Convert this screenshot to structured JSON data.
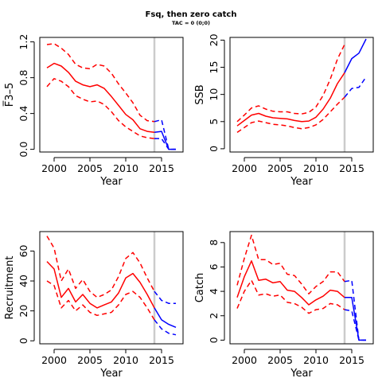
{
  "figure": {
    "title": "Fsq, then zero catch",
    "subtitle": "TAC = 0 (0;0)"
  },
  "colors": {
    "history": "#ff0000",
    "projection": "#0000ff",
    "divider": "#cccccc"
  },
  "chart_data": [
    {
      "type": "line",
      "xlabel": "Year",
      "ylabel": "F̅3–5",
      "xlim": [
        1998,
        2018
      ],
      "ylim": [
        -0.03,
        1.25
      ],
      "xticks": [
        2000,
        2005,
        2010,
        2015
      ],
      "yticks": [
        0.0,
        0.4,
        0.8,
        1.2
      ],
      "ytick_labels": [
        "0.0",
        "0.4",
        "0.8",
        "1.2"
      ],
      "divider_x": 2014,
      "series": [
        {
          "role": "history",
          "style": "solid",
          "x": [
            1999,
            2000,
            2001,
            2002,
            2003,
            2004,
            2005,
            2006,
            2007,
            2008,
            2009,
            2010,
            2011,
            2012,
            2013,
            2014
          ],
          "values": [
            0.91,
            0.96,
            0.93,
            0.86,
            0.76,
            0.72,
            0.7,
            0.72,
            0.68,
            0.59,
            0.49,
            0.39,
            0.33,
            0.23,
            0.2,
            0.19
          ]
        },
        {
          "role": "history",
          "style": "dashed",
          "x": [
            1999,
            2000,
            2001,
            2002,
            2003,
            2004,
            2005,
            2006,
            2007,
            2008,
            2009,
            2010,
            2011,
            2012,
            2013,
            2014
          ],
          "values": [
            1.17,
            1.18,
            1.13,
            1.06,
            0.95,
            0.91,
            0.9,
            0.95,
            0.93,
            0.85,
            0.73,
            0.63,
            0.52,
            0.38,
            0.32,
            0.31
          ]
        },
        {
          "role": "history",
          "style": "dashed",
          "x": [
            1999,
            2000,
            2001,
            2002,
            2003,
            2004,
            2005,
            2006,
            2007,
            2008,
            2009,
            2010,
            2011,
            2012,
            2013,
            2014
          ],
          "values": [
            0.7,
            0.79,
            0.76,
            0.7,
            0.6,
            0.56,
            0.53,
            0.54,
            0.5,
            0.42,
            0.32,
            0.25,
            0.2,
            0.15,
            0.13,
            0.12
          ]
        },
        {
          "role": "projection",
          "style": "solid",
          "x": [
            2014,
            2015,
            2016,
            2017
          ],
          "values": [
            0.19,
            0.2,
            0.0,
            0.0
          ]
        },
        {
          "role": "projection",
          "style": "dashed",
          "x": [
            2014,
            2015,
            2016,
            2017
          ],
          "values": [
            0.31,
            0.33,
            0.0,
            0.0
          ]
        },
        {
          "role": "projection",
          "style": "dashed",
          "x": [
            2014,
            2015,
            2016,
            2017
          ],
          "values": [
            0.12,
            0.12,
            0.0,
            0.0
          ]
        }
      ]
    },
    {
      "type": "line",
      "xlabel": "Year",
      "ylabel": "SSB",
      "xlim": [
        1998,
        2018
      ],
      "ylim": [
        -0.6,
        20.5
      ],
      "xticks": [
        2000,
        2005,
        2010,
        2015
      ],
      "yticks": [
        0,
        5,
        10,
        15,
        20
      ],
      "ytick_labels": [
        "0",
        "5",
        "10",
        "15",
        "20"
      ],
      "divider_x": 2014,
      "series": [
        {
          "role": "history",
          "style": "solid",
          "x": [
            1999,
            2000,
            2001,
            2002,
            2003,
            2004,
            2005,
            2006,
            2007,
            2008,
            2009,
            2010,
            2011,
            2012,
            2013,
            2014
          ],
          "values": [
            4.2,
            5.2,
            6.2,
            6.5,
            6.0,
            5.7,
            5.6,
            5.5,
            5.2,
            5.0,
            5.1,
            5.8,
            7.3,
            9.3,
            12.0,
            14.0
          ]
        },
        {
          "role": "history",
          "style": "dashed",
          "x": [
            1999,
            2000,
            2001,
            2002,
            2003,
            2004,
            2005,
            2006,
            2007,
            2008,
            2009,
            2010,
            2011,
            2012,
            2013,
            2014
          ],
          "values": [
            5.0,
            6.2,
            7.5,
            7.9,
            7.3,
            6.9,
            6.8,
            6.8,
            6.5,
            6.4,
            6.7,
            7.7,
            9.8,
            12.8,
            16.5,
            19.2
          ]
        },
        {
          "role": "history",
          "style": "dashed",
          "x": [
            1999,
            2000,
            2001,
            2002,
            2003,
            2004,
            2005,
            2006,
            2007,
            2008,
            2009,
            2010,
            2011,
            2012,
            2013,
            2014
          ],
          "values": [
            3.0,
            3.9,
            4.8,
            5.1,
            4.8,
            4.5,
            4.4,
            4.2,
            3.9,
            3.7,
            3.9,
            4.4,
            5.4,
            6.8,
            8.2,
            9.5
          ]
        },
        {
          "role": "projection",
          "style": "solid",
          "x": [
            2014,
            2015,
            2016,
            2017
          ],
          "values": [
            14.0,
            16.6,
            17.6,
            20.2
          ]
        },
        {
          "role": "projection",
          "style": "dashed",
          "x": [
            2014,
            2015,
            2016,
            2017
          ],
          "values": [
            9.5,
            11.1,
            11.3,
            13.2
          ]
        }
      ]
    },
    {
      "type": "line",
      "xlabel": "Year",
      "ylabel": "Recruitment",
      "xlim": [
        1998,
        2018
      ],
      "ylim": [
        -2,
        73
      ],
      "xticks": [
        2000,
        2005,
        2010,
        2015
      ],
      "yticks": [
        0,
        20,
        40,
        60
      ],
      "ytick_labels": [
        "0",
        "20",
        "40",
        "60"
      ],
      "divider_x": 2014,
      "series": [
        {
          "role": "history",
          "style": "solid",
          "x": [
            1999,
            2000,
            2001,
            2002,
            2003,
            2004,
            2005,
            2006,
            2007,
            2008,
            2009,
            2010,
            2011,
            2012,
            2013,
            2014
          ],
          "values": [
            53,
            48,
            29,
            35,
            26,
            31,
            25,
            22,
            24,
            26,
            32,
            42,
            45,
            39,
            31,
            22
          ]
        },
        {
          "role": "history",
          "style": "dashed",
          "x": [
            1999,
            2000,
            2001,
            2002,
            2003,
            2004,
            2005,
            2006,
            2007,
            2008,
            2009,
            2010,
            2011,
            2012,
            2013,
            2014
          ],
          "values": [
            70,
            62,
            40,
            48,
            35,
            41,
            33,
            29,
            31,
            34,
            43,
            55,
            59,
            52,
            42,
            33
          ]
        },
        {
          "role": "history",
          "style": "dashed",
          "x": [
            1999,
            2000,
            2001,
            2002,
            2003,
            2004,
            2005,
            2006,
            2007,
            2008,
            2009,
            2010,
            2011,
            2012,
            2013,
            2014
          ],
          "values": [
            40,
            37,
            22,
            27,
            20,
            24,
            19,
            17,
            18,
            19,
            24,
            31,
            33,
            29,
            22,
            14
          ]
        },
        {
          "role": "projection",
          "style": "solid",
          "x": [
            2014,
            2015,
            2016,
            2017
          ],
          "values": [
            22,
            14,
            11,
            9
          ]
        },
        {
          "role": "projection",
          "style": "dashed",
          "x": [
            2014,
            2015,
            2016,
            2017
          ],
          "values": [
            33,
            27,
            25,
            25
          ]
        },
        {
          "role": "projection",
          "style": "dashed",
          "x": [
            2014,
            2015,
            2016,
            2017
          ],
          "values": [
            14,
            8,
            5,
            4
          ]
        }
      ]
    },
    {
      "type": "line",
      "xlabel": "Year",
      "ylabel": "Catch",
      "xlim": [
        1998,
        2018
      ],
      "ylim": [
        -0.3,
        8.9
      ],
      "xticks": [
        2000,
        2005,
        2010,
        2015
      ],
      "yticks": [
        0,
        2,
        4,
        6,
        8
      ],
      "ytick_labels": [
        "0",
        "2",
        "4",
        "6",
        "8"
      ],
      "divider_x": 2014,
      "series": [
        {
          "role": "history",
          "style": "solid",
          "x": [
            1999,
            2000,
            2001,
            2002,
            2003,
            2004,
            2005,
            2006,
            2007,
            2008,
            2009,
            2010,
            2011,
            2012,
            2013,
            2014
          ],
          "values": [
            3.5,
            5.2,
            6.5,
            4.9,
            5.0,
            4.7,
            4.8,
            4.1,
            4.0,
            3.5,
            2.9,
            3.3,
            3.6,
            4.1,
            4.0,
            3.5
          ]
        },
        {
          "role": "history",
          "style": "dashed",
          "x": [
            1999,
            2000,
            2001,
            2002,
            2003,
            2004,
            2005,
            2006,
            2007,
            2008,
            2009,
            2010,
            2011,
            2012,
            2013,
            2014
          ],
          "values": [
            4.5,
            6.7,
            8.6,
            6.6,
            6.6,
            6.2,
            6.3,
            5.4,
            5.3,
            4.6,
            3.8,
            4.4,
            4.8,
            5.6,
            5.6,
            4.8
          ]
        },
        {
          "role": "history",
          "style": "dashed",
          "x": [
            1999,
            2000,
            2001,
            2002,
            2003,
            2004,
            2005,
            2006,
            2007,
            2008,
            2009,
            2010,
            2011,
            2012,
            2013,
            2014
          ],
          "values": [
            2.6,
            4.0,
            4.9,
            3.7,
            3.8,
            3.6,
            3.7,
            3.1,
            3.0,
            2.7,
            2.2,
            2.5,
            2.6,
            3.0,
            2.9,
            2.5
          ]
        },
        {
          "role": "projection",
          "style": "solid",
          "x": [
            2014,
            2015,
            2016,
            2017
          ],
          "values": [
            3.5,
            3.5,
            0.0,
            0.0
          ]
        },
        {
          "role": "projection",
          "style": "dashed",
          "x": [
            2014,
            2015,
            2016,
            2017
          ],
          "values": [
            4.8,
            4.9,
            0.0,
            0.0
          ]
        },
        {
          "role": "projection",
          "style": "dashed",
          "x": [
            2014,
            2015,
            2016,
            2017
          ],
          "values": [
            2.5,
            2.4,
            0.0,
            0.0
          ]
        }
      ]
    }
  ]
}
